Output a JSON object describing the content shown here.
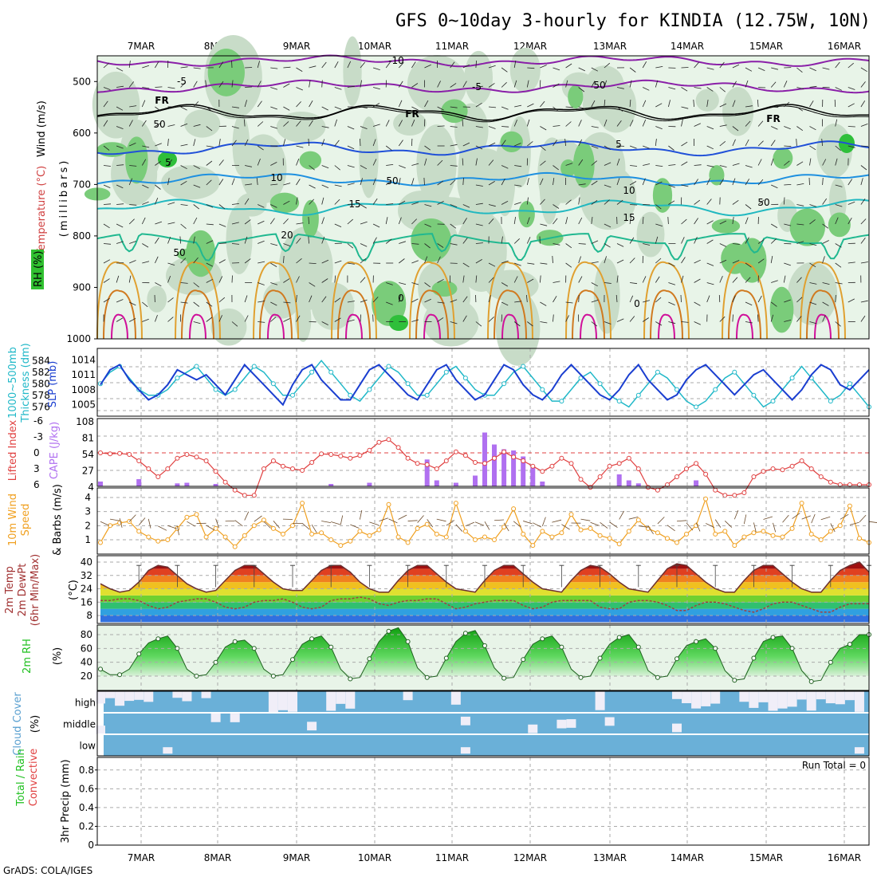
{
  "title": "GFS 0~10day 3-hourly for KINDIA (12.75W, 10N)",
  "credit": "GrADS: COLA/IGES",
  "colors": {
    "rh_light": "#e8f4e8",
    "rh_mid": "#c8dcc8",
    "rh_green": "#7acc7a",
    "rh_dark": "#2fbf3a",
    "temp_minus10": "#8a1fa8",
    "temp_minus5": "#8a1fa8",
    "freezing": "#000000",
    "temp_5": "#2050d8",
    "temp_10": "#1e90e0",
    "temp_15": "#20b8c0",
    "temp_20": "#20b890",
    "temp_hot": "#e0a030",
    "temp_hotter": "#d07a20",
    "temp_hottest": "#d0109a",
    "slp": "#1a3ed0",
    "thickness": "#20b8c8",
    "lifted": "#e04040",
    "cape": "#b070f0",
    "wind10": "#f0a020",
    "barb": "#6b4a2a",
    "temp2m_line": "#6b3030",
    "dewpt_line": "#a04040",
    "rh2m": "#20c020",
    "cloud_blue": "#6ab0d8",
    "cloud_white": "#f0eef8"
  },
  "chart_data": [
    {
      "id": "upper_air",
      "type": "contour",
      "ylabel_parts": [
        "Wind (m/s)",
        "Temperature (°C)",
        "RH (%)",
        "(millibars)"
      ],
      "y_ticks": [
        "500",
        "600",
        "700",
        "800",
        "900",
        "1000"
      ],
      "ylim": [
        1000,
        450
      ],
      "x_ticks": [
        "7MAR",
        "8MAR",
        "9MAR",
        "10MAR",
        "11MAR",
        "12MAR",
        "13MAR",
        "14MAR",
        "15MAR",
        "16MAR"
      ],
      "isotherm_labels": [
        {
          "text": "-10",
          "level": 463
        },
        {
          "text": "-5",
          "level": 505
        },
        {
          "text": "-5",
          "level": 512
        },
        {
          "text": "FR",
          "level": 541
        },
        {
          "text": "FR",
          "level": 562
        },
        {
          "text": "FR",
          "level": 578
        },
        {
          "text": "5",
          "level": 620
        },
        {
          "text": "5",
          "level": 640
        },
        {
          "text": "10",
          "level": 685
        },
        {
          "text": "10",
          "level": 708
        },
        {
          "text": "15",
          "level": 734
        },
        {
          "text": "15",
          "level": 761
        },
        {
          "text": "20",
          "level": 800
        },
        {
          "text": "0",
          "level": 923
        },
        {
          "text": "0",
          "level": 930
        },
        {
          "text": "50",
          "level": 590
        },
        {
          "text": "50",
          "level": 838
        },
        {
          "text": "50",
          "level": 692
        },
        {
          "text": "50",
          "level": 721
        },
        {
          "text": "50",
          "level": 508
        }
      ]
    },
    {
      "id": "slp_thickness",
      "type": "line",
      "ylabel_left": "1000~500mb Thickness (dm)",
      "ylabel_right": "SLP (mb)",
      "left_ticks": [
        "584",
        "582",
        "580",
        "578",
        "576"
      ],
      "right_ticks": [
        "1014",
        "1011",
        "1008",
        "1005"
      ],
      "series": [
        {
          "name": "SLP",
          "axis": "right",
          "values": [
            1009,
            1012,
            1013,
            1010,
            1008,
            1006,
            1007,
            1009,
            1012,
            1011,
            1010,
            1011,
            1009,
            1007,
            1010,
            1013,
            1011,
            1009,
            1007,
            1005,
            1009,
            1012,
            1013,
            1010,
            1008,
            1006,
            1006,
            1009,
            1012,
            1013,
            1011,
            1009,
            1007,
            1006,
            1009,
            1012,
            1013,
            1010,
            1008,
            1006,
            1007,
            1010,
            1013,
            1012,
            1009,
            1007,
            1006,
            1008,
            1011,
            1013,
            1011,
            1009,
            1007,
            1006,
            1008,
            1011,
            1013,
            1010,
            1008,
            1006,
            1007,
            1010,
            1012,
            1013,
            1011,
            1009,
            1007,
            1009,
            1011,
            1012,
            1010,
            1008,
            1006,
            1008,
            1011,
            1013,
            1012,
            1009,
            1008,
            1010,
            1012
          ]
        },
        {
          "name": "Thickness",
          "axis": "left",
          "values": [
            580,
            582,
            583,
            581,
            579,
            578,
            578,
            579,
            581,
            582,
            583,
            581,
            579,
            578,
            579,
            581,
            583,
            582,
            580,
            578,
            578,
            580,
            582,
            584,
            582,
            580,
            578,
            577,
            579,
            581,
            583,
            582,
            580,
            578,
            578,
            580,
            582,
            583,
            581,
            579,
            578,
            578,
            580,
            582,
            583,
            581,
            579,
            577,
            577,
            579,
            581,
            582,
            580,
            578,
            577,
            576,
            578,
            580,
            582,
            581,
            579,
            577,
            576,
            577,
            579,
            581,
            582,
            580,
            578,
            576,
            577,
            579,
            581,
            583,
            581,
            579,
            577,
            578,
            580,
            578,
            576
          ]
        }
      ]
    },
    {
      "id": "lifted_cape",
      "type": "bar+line",
      "ylabel_left": "Lifted Index",
      "ylabel_right": "CAPE (J/kg)",
      "left_ticks": [
        "-6",
        "-3",
        "0",
        "3",
        "6"
      ],
      "right_ticks": [
        "108",
        "81",
        "54",
        "27",
        "4"
      ],
      "lifted_index": [
        0,
        0.2,
        0.1,
        0.3,
        1.5,
        3,
        4.5,
        3,
        1,
        0.3,
        0.8,
        1.5,
        3.5,
        5.5,
        7,
        8,
        8,
        3,
        1.5,
        2.5,
        3,
        3.3,
        1.8,
        0.2,
        0.3,
        0.6,
        1,
        0.5,
        -0.5,
        -2,
        -2.5,
        -1,
        1,
        2,
        2.2,
        3,
        1.5,
        -0.2,
        0.5,
        1.8,
        2,
        1,
        -0.2,
        0.8,
        1.5,
        2.5,
        3.5,
        2.5,
        1,
        2,
        5,
        6.5,
        4.5,
        2.5,
        2,
        1,
        3,
        6.5,
        7,
        6,
        4.5,
        3,
        2,
        4,
        7,
        8,
        8,
        7.5,
        4.5,
        3.5,
        3,
        3.2,
        2.5,
        1.5,
        3,
        4.5,
        5.5,
        6,
        6,
        6,
        6
      ],
      "cape": [
        8,
        0,
        0,
        0,
        12,
        0,
        0,
        0,
        5,
        6,
        0,
        0,
        4,
        0,
        0,
        0,
        0,
        0,
        0,
        0,
        0,
        0,
        0,
        0,
        4,
        0,
        0,
        0,
        6,
        0,
        0,
        0,
        0,
        0,
        45,
        10,
        0,
        6,
        0,
        18,
        90,
        70,
        62,
        60,
        50,
        32,
        8,
        0,
        0,
        0,
        0,
        0,
        0,
        0,
        20,
        10,
        5,
        0,
        0,
        0,
        0,
        0,
        10,
        0,
        0,
        0,
        0,
        0,
        0,
        0,
        0,
        0,
        0,
        0,
        0,
        0,
        0,
        0,
        0,
        0,
        0
      ]
    },
    {
      "id": "wind10m",
      "type": "line",
      "ylabel": "10m Wind Speed & Barbs (m/s)",
      "y_ticks": [
        "4",
        "3",
        "2",
        "1"
      ],
      "values": [
        0.8,
        2,
        2.2,
        2.3,
        1.6,
        1.2,
        0.9,
        1,
        1.8,
        2.6,
        2.8,
        1.2,
        1.8,
        1.2,
        0.5,
        1.3,
        2,
        2.4,
        1.8,
        1.4,
        2,
        3.6,
        1.4,
        1.5,
        1,
        0.6,
        0.9,
        1.6,
        1.3,
        1.7,
        3.5,
        1.2,
        0.8,
        1.8,
        2.1,
        1.4,
        1.2,
        3.6,
        1.6,
        1,
        1.2,
        1,
        1.9,
        3.2,
        1.4,
        0.6,
        1.6,
        1.2,
        1.5,
        2.8,
        1.7,
        1.8,
        1.3,
        1.1,
        0.7,
        1.6,
        2.4,
        1.8,
        1.5,
        1.1,
        0.8,
        1.4,
        2,
        3.9,
        1.4,
        1.6,
        0.6,
        1.2,
        1.5,
        1.6,
        1.3,
        1.2,
        1.8,
        3.6,
        1.4,
        1,
        1.6,
        2,
        3.4,
        1.1,
        0.8
      ]
    },
    {
      "id": "temp2m",
      "type": "area+line",
      "ylabel_parts": [
        "2m Temp",
        "2m DewPt",
        "(6hr Min/Max) (°C)"
      ],
      "y_ticks": [
        "40",
        "32",
        "24",
        "16",
        "8"
      ],
      "temp": [
        27,
        24,
        22,
        23,
        28,
        35,
        38,
        37,
        32,
        27,
        24,
        22,
        23,
        29,
        35,
        38,
        38,
        33,
        28,
        24,
        23,
        23,
        29,
        35,
        38,
        38,
        34,
        28,
        24,
        22,
        22,
        29,
        35,
        38,
        38,
        33,
        28,
        24,
        23,
        22,
        29,
        35,
        38,
        38,
        33,
        28,
        24,
        23,
        22,
        29,
        35,
        38,
        37,
        33,
        28,
        24,
        23,
        22,
        29,
        36,
        39,
        38,
        33,
        28,
        24,
        22,
        22,
        29,
        35,
        38,
        38,
        33,
        28,
        24,
        22,
        22,
        29,
        35,
        38,
        40,
        34
      ],
      "dewpoint": [
        17,
        17,
        18,
        18,
        17,
        14,
        12,
        13,
        16,
        17,
        18,
        18,
        16,
        13,
        12,
        13,
        16,
        17,
        17,
        18,
        16,
        13,
        12,
        13,
        17,
        18,
        18,
        19,
        18,
        15,
        14,
        16,
        17,
        17,
        18,
        18,
        15,
        12,
        13,
        15,
        16,
        17,
        17,
        17,
        14,
        12,
        13,
        16,
        17,
        17,
        17,
        17,
        13,
        12,
        12,
        16,
        17,
        17,
        16,
        14,
        11,
        11,
        14,
        16,
        16,
        15,
        13,
        11,
        10,
        12,
        15,
        16,
        16,
        14,
        12,
        10,
        10,
        13,
        15,
        15,
        15
      ]
    },
    {
      "id": "rh2m",
      "type": "area",
      "ylabel_parts": [
        "2m RH",
        "(%)"
      ],
      "y_ticks": [
        "80",
        "60",
        "40",
        "20"
      ],
      "values": [
        30,
        22,
        22,
        30,
        52,
        68,
        74,
        78,
        60,
        30,
        20,
        22,
        40,
        62,
        70,
        72,
        60,
        30,
        20,
        22,
        44,
        66,
        74,
        78,
        62,
        30,
        16,
        18,
        45,
        70,
        85,
        90,
        70,
        32,
        18,
        20,
        46,
        70,
        82,
        86,
        64,
        32,
        17,
        18,
        44,
        66,
        74,
        78,
        62,
        30,
        18,
        20,
        46,
        66,
        76,
        80,
        62,
        28,
        18,
        20,
        45,
        64,
        70,
        74,
        60,
        28,
        14,
        16,
        46,
        70,
        76,
        78,
        60,
        28,
        12,
        14,
        40,
        60,
        66,
        80,
        80
      ]
    },
    {
      "id": "cloud_cover",
      "type": "heatmap",
      "ylabel": "Cloud Cover (%)",
      "layers": [
        "high",
        "middle",
        "low"
      ]
    },
    {
      "id": "precip",
      "type": "bar",
      "ylabel_parts": [
        "Total / Rain",
        "Convective",
        "3hr Precip (mm)"
      ],
      "y_ticks": [
        "0.8",
        "0.6",
        "0.4",
        "0.2",
        "0"
      ],
      "run_total": "Run Total = 0",
      "values": []
    }
  ]
}
